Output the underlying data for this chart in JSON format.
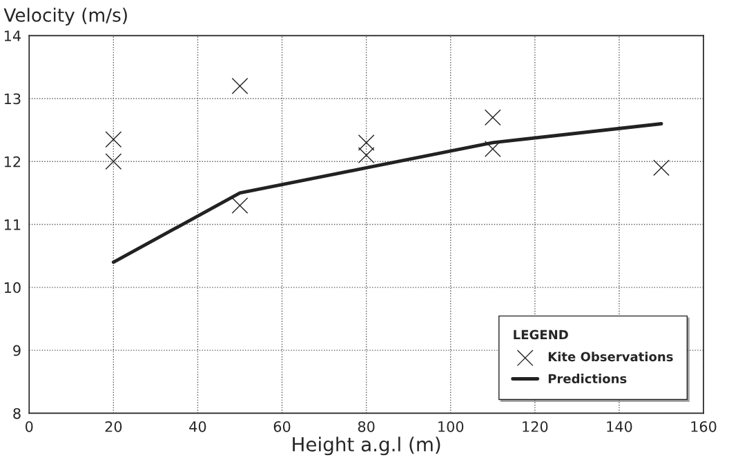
{
  "chart_data": {
    "type": "scatter",
    "ylabel": "Velocity (m/s)",
    "xlabel": "Height a.g.l (m)",
    "legend_title": "LEGEND",
    "xlim": [
      0,
      160
    ],
    "xticks": [
      0,
      20,
      40,
      60,
      80,
      100,
      120,
      140,
      160
    ],
    "ylim": [
      8,
      14
    ],
    "yticks": [
      8,
      9,
      10,
      11,
      12,
      13,
      14
    ],
    "grid": true,
    "legend": "bottom right",
    "series": [
      {
        "name": "Kite Observations",
        "color": "#222222",
        "marker": "cross",
        "x": [
          20,
          20,
          50,
          50,
          80,
          80,
          110,
          110,
          150
        ],
        "values": [
          12.35,
          12.0,
          13.2,
          11.3,
          12.3,
          12.1,
          12.7,
          12.2,
          11.9
        ]
      },
      {
        "name": "Predictions",
        "type": "line",
        "color": "#222222",
        "line_style": "solid",
        "marker": "none",
        "x": [
          20,
          50,
          80,
          110,
          150
        ],
        "values": [
          10.4,
          11.5,
          11.9,
          12.3,
          12.6
        ]
      }
    ]
  }
}
